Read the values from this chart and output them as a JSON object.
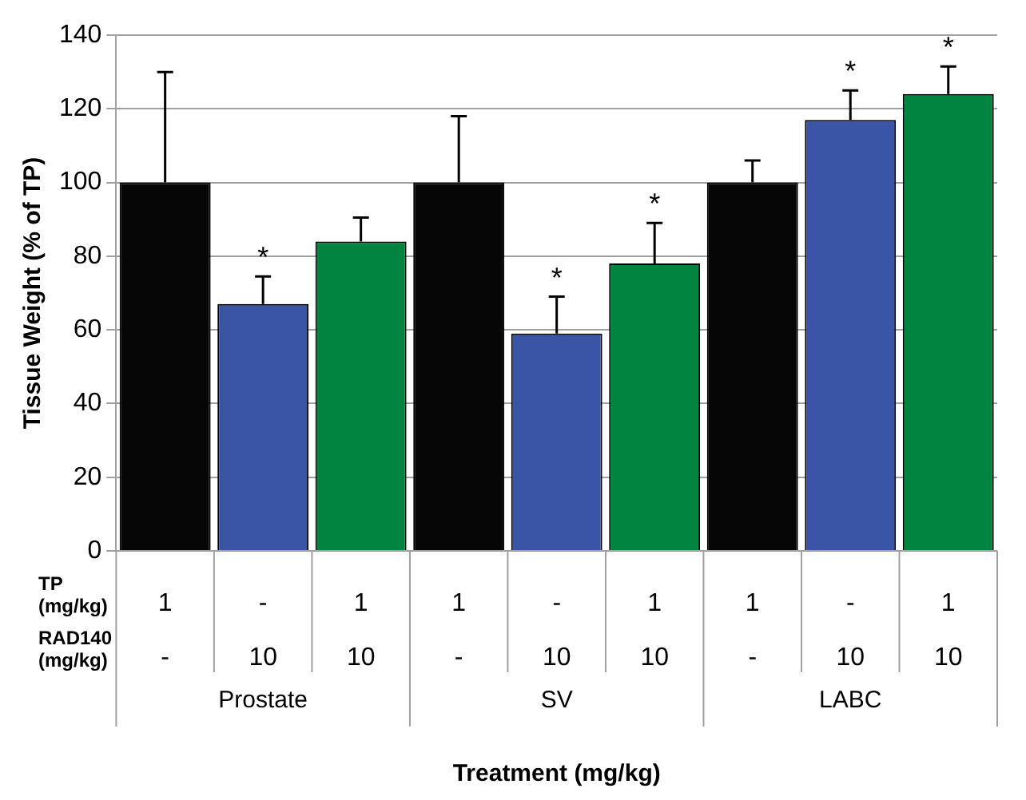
{
  "chart_data": {
    "type": "bar",
    "ylabel": "Tissue Weight (% of TP)",
    "xlabel": "Treatment (mg/kg)",
    "categories": [
      "1\n-",
      "-\n10",
      "1\n10",
      "1\n-",
      "-\n10",
      "1\n10",
      "1\n-",
      "-\n10",
      "1\n10"
    ],
    "values": [
      100,
      67,
      84,
      100,
      59,
      78,
      100,
      117,
      124
    ],
    "colors": [
      "#060606",
      "#3a55a5",
      "#00843f",
      "#060606",
      "#3a55a5",
      "#00843f",
      "#060606",
      "#3a55a5",
      "#00843f"
    ],
    "errors": [
      [
        100,
        130
      ],
      [
        67,
        74.5
      ],
      [
        84,
        90.5
      ],
      [
        100,
        118
      ],
      [
        59,
        69
      ],
      [
        78,
        89
      ],
      [
        100,
        106
      ],
      [
        117,
        125
      ],
      [
        124,
        131.5
      ]
    ],
    "value_labels": [
      null,
      "*",
      null,
      null,
      "*",
      "*",
      null,
      "*",
      "*"
    ],
    "annotations": [
      "TP (mg/kg)",
      "RAD140 (mg/kg)",
      "Prostate",
      "SV",
      "LABC"
    ],
    "ylim": [
      0,
      140
    ],
    "yticks": [
      0,
      20,
      40,
      60,
      80,
      100,
      120,
      140
    ],
    "grid": "y",
    "legend": false
  }
}
